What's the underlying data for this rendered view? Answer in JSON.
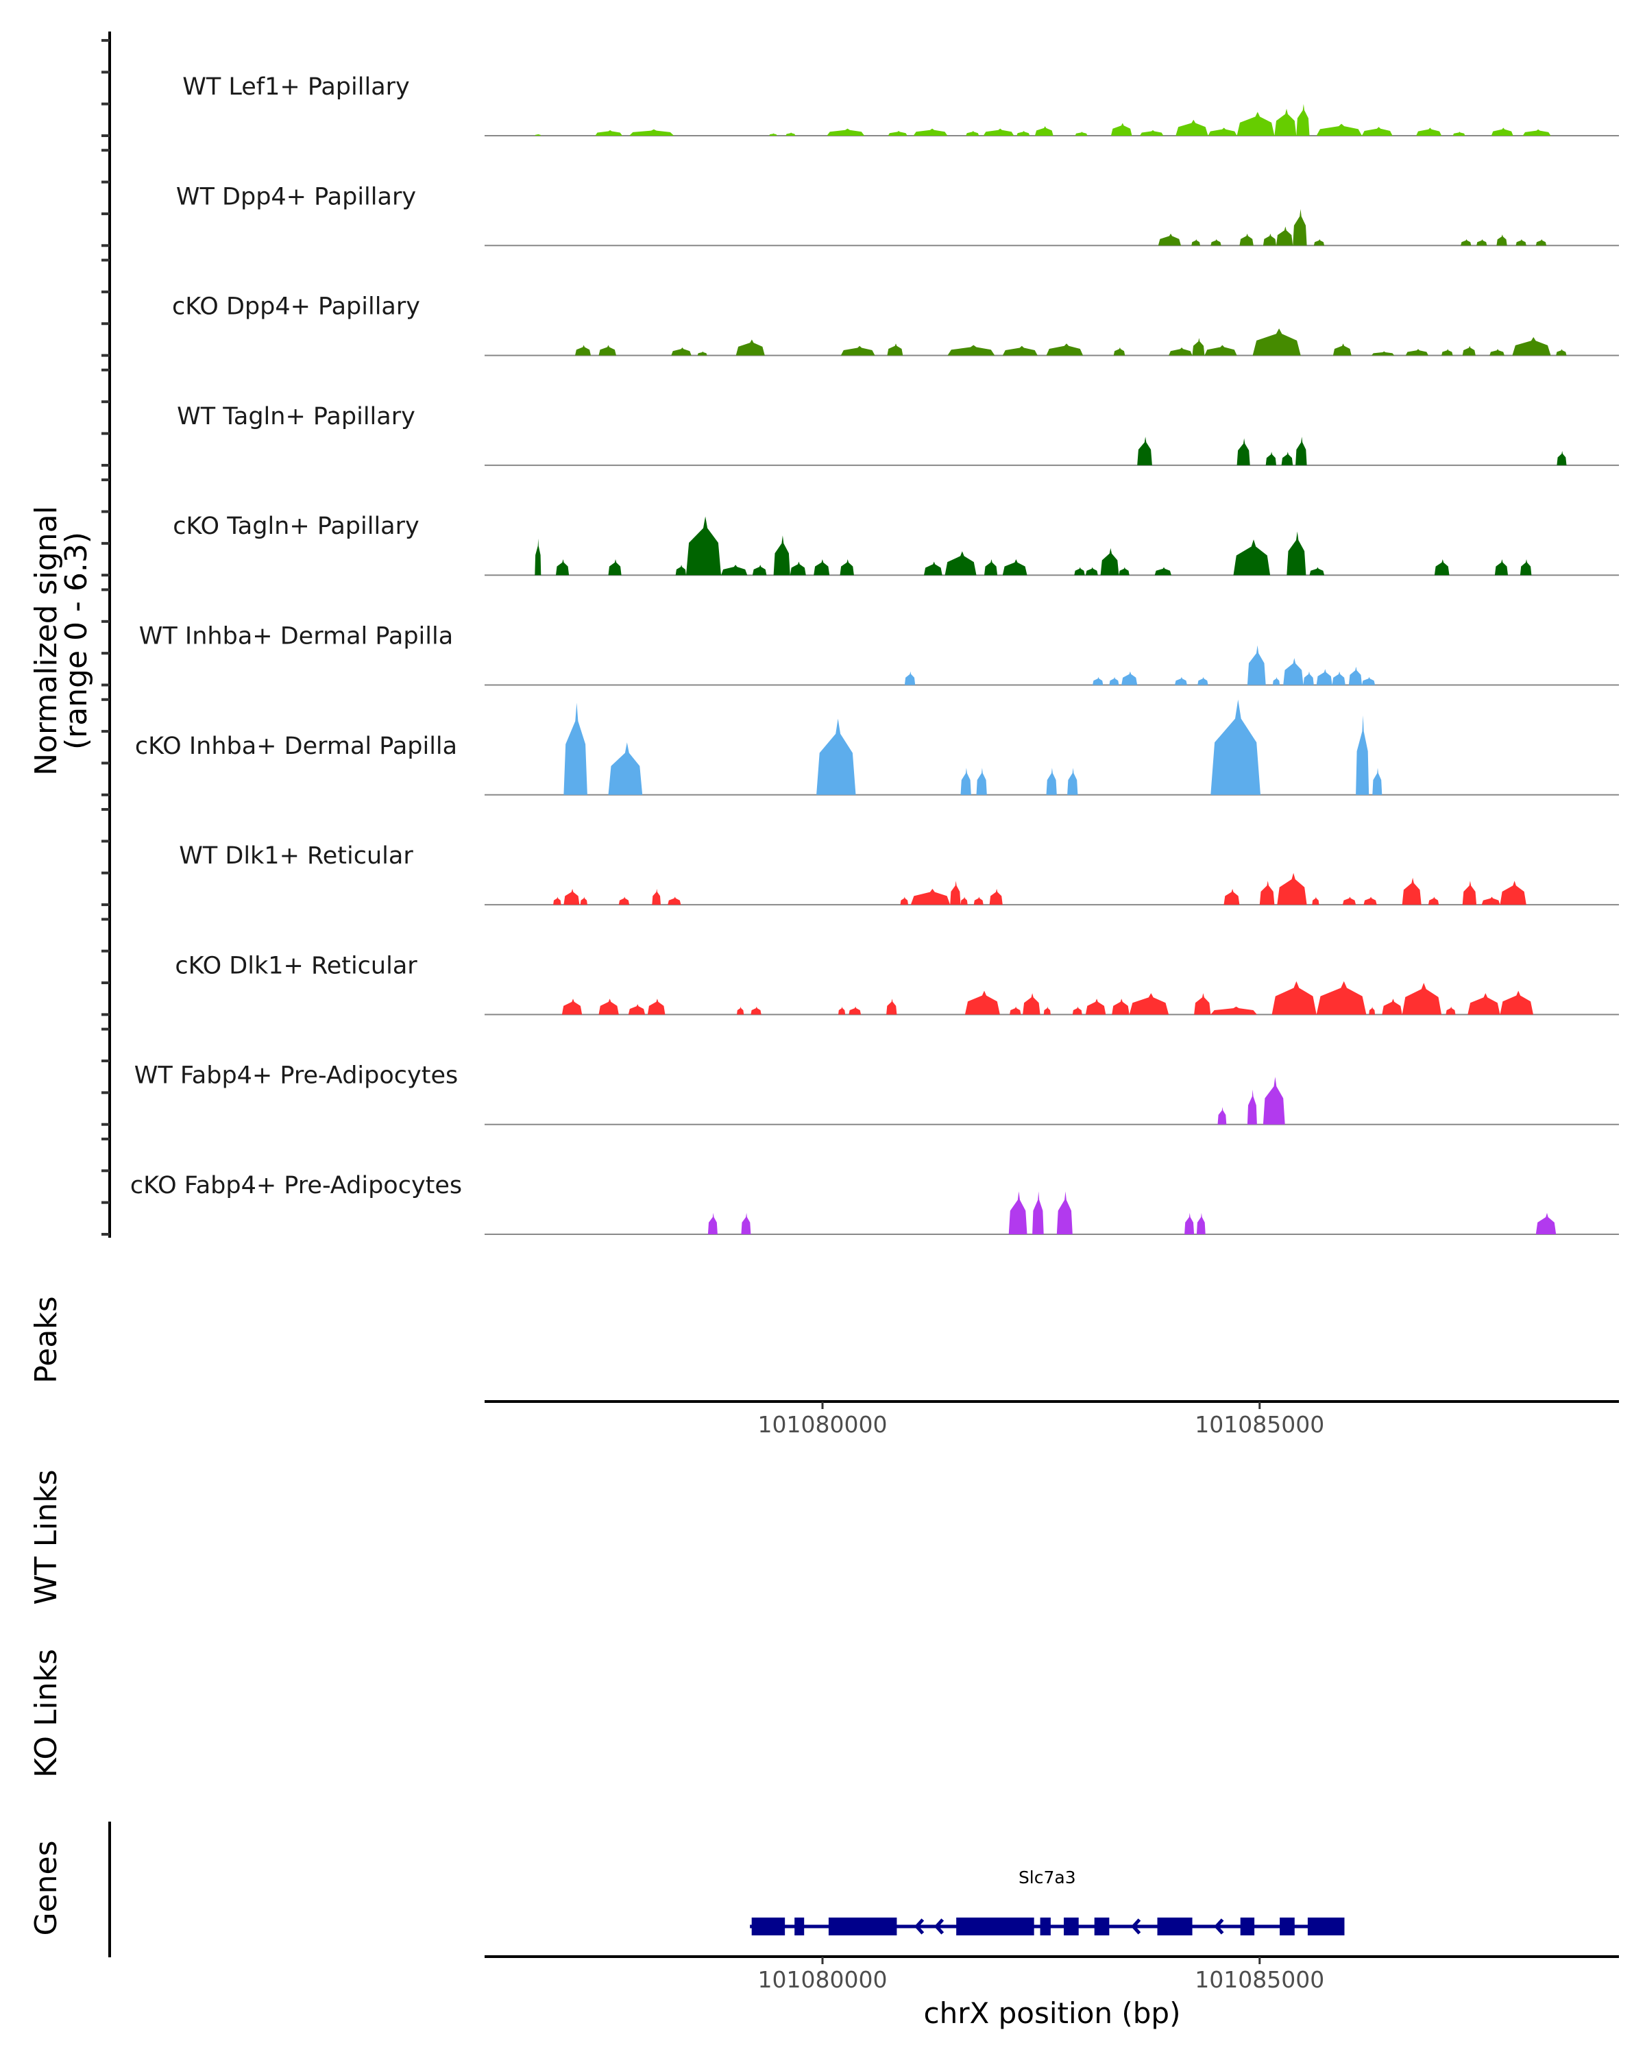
{
  "chart_data": {
    "type": "area",
    "title": "",
    "ylabel": "Normalized signal",
    "ylabel_sub": "(range 0 - 6.3)",
    "ylim": [
      0,
      6.3
    ],
    "xlabel": "chrX position (bp)",
    "xlim": [
      101076135,
      101089110
    ],
    "xticks": [
      101080000,
      101085000
    ],
    "xtick_labels": [
      "101080000",
      "101085000"
    ],
    "grid": false,
    "legend": "none",
    "tracks": [
      {
        "name": "WT Lef1+ Papillary",
        "color": "#66CD00",
        "peaks": [
          [
            101076710,
            101076780,
            0.1
          ],
          [
            101077400,
            101077710,
            0.35
          ],
          [
            101077790,
            101078300,
            0.4
          ],
          [
            101079390,
            101079480,
            0.15
          ],
          [
            101079580,
            101079690,
            0.2
          ],
          [
            101080050,
            101080480,
            0.45
          ],
          [
            101080750,
            101080970,
            0.3
          ],
          [
            101081040,
            101081430,
            0.45
          ],
          [
            101081640,
            101081790,
            0.3
          ],
          [
            101081840,
            101082190,
            0.45
          ],
          [
            101082220,
            101082370,
            0.3
          ],
          [
            101082430,
            101082640,
            0.6
          ],
          [
            101082890,
            101083030,
            0.25
          ],
          [
            101083300,
            101083540,
            0.8
          ],
          [
            101083630,
            101083900,
            0.35
          ],
          [
            101084040,
            101084410,
            1.0
          ],
          [
            101084410,
            101084740,
            0.5
          ],
          [
            101084740,
            101085170,
            1.5
          ],
          [
            101085170,
            101085420,
            1.7
          ],
          [
            101085420,
            101085570,
            2.0
          ],
          [
            101085650,
            101086170,
            0.75
          ],
          [
            101086170,
            101086520,
            0.55
          ],
          [
            101086790,
            101087080,
            0.5
          ],
          [
            101087210,
            101087350,
            0.25
          ],
          [
            101087650,
            101087900,
            0.5
          ],
          [
            101088010,
            101088330,
            0.4
          ]
        ]
      },
      {
        "name": "WT Dpp4+ Papillary",
        "color": "#458B00",
        "peaks": [
          [
            101083840,
            101084100,
            0.75
          ],
          [
            101084220,
            101084320,
            0.4
          ],
          [
            101084440,
            101084560,
            0.4
          ],
          [
            101084770,
            101084930,
            0.75
          ],
          [
            101085040,
            101085190,
            0.75
          ],
          [
            101085190,
            101085380,
            1.2
          ],
          [
            101085380,
            101085540,
            2.3
          ],
          [
            101085620,
            101085740,
            0.4
          ],
          [
            101087300,
            101087420,
            0.4
          ],
          [
            101087480,
            101087600,
            0.4
          ],
          [
            101087710,
            101087830,
            0.7
          ],
          [
            101087930,
            101088050,
            0.4
          ],
          [
            101088160,
            101088280,
            0.4
          ]
        ]
      },
      {
        "name": "cKO Dpp4+ Papillary",
        "color": "#458B00",
        "peaks": [
          [
            101077170,
            101077350,
            0.65
          ],
          [
            101077440,
            101077640,
            0.65
          ],
          [
            101078270,
            101078500,
            0.5
          ],
          [
            101078570,
            101078680,
            0.25
          ],
          [
            101079010,
            101079340,
            1.0
          ],
          [
            101080210,
            101080600,
            0.6
          ],
          [
            101080740,
            101080920,
            0.75
          ],
          [
            101081430,
            101081970,
            0.65
          ],
          [
            101082060,
            101082460,
            0.6
          ],
          [
            101082560,
            101082980,
            0.75
          ],
          [
            101083330,
            101083460,
            0.5
          ],
          [
            101083960,
            101084230,
            0.5
          ],
          [
            101084230,
            101084370,
            1.1
          ],
          [
            101084370,
            101084740,
            0.65
          ],
          [
            101084920,
            101085470,
            1.7
          ],
          [
            101085840,
            101086050,
            0.75
          ],
          [
            101086280,
            101086540,
            0.25
          ],
          [
            101086670,
            101086930,
            0.4
          ],
          [
            101087080,
            101087210,
            0.4
          ],
          [
            101087320,
            101087470,
            0.6
          ],
          [
            101087630,
            101087800,
            0.4
          ],
          [
            101087890,
            101088330,
            1.15
          ],
          [
            101088390,
            101088510,
            0.4
          ]
        ]
      },
      {
        "name": "WT Tagln+ Papillary",
        "color": "#006400",
        "peaks": [
          [
            101083600,
            101083770,
            1.8
          ],
          [
            101084740,
            101084890,
            1.7
          ],
          [
            101085070,
            101085190,
            0.85
          ],
          [
            101085250,
            101085380,
            0.85
          ],
          [
            101085410,
            101085540,
            1.8
          ],
          [
            101088400,
            101088510,
            0.9
          ]
        ]
      },
      {
        "name": "cKO Tagln+ Papillary",
        "color": "#006400",
        "peaks": [
          [
            101076710,
            101076780,
            2.3
          ],
          [
            101076950,
            101077100,
            1.0
          ],
          [
            101077550,
            101077700,
            1.0
          ],
          [
            101078320,
            101078440,
            0.65
          ],
          [
            101078440,
            101078840,
            3.7
          ],
          [
            101078840,
            101079140,
            0.65
          ],
          [
            101079200,
            101079360,
            0.65
          ],
          [
            101079440,
            101079630,
            2.5
          ],
          [
            101079630,
            101079810,
            0.85
          ],
          [
            101079900,
            101080080,
            1.0
          ],
          [
            101080200,
            101080360,
            1.0
          ],
          [
            101081160,
            101081370,
            0.85
          ],
          [
            101081400,
            101081760,
            1.5
          ],
          [
            101081850,
            101082000,
            1.0
          ],
          [
            101082060,
            101082340,
            1.0
          ],
          [
            101082880,
            101083000,
            0.5
          ],
          [
            101083010,
            101083150,
            0.5
          ],
          [
            101083180,
            101083390,
            1.7
          ],
          [
            101083390,
            101083510,
            0.5
          ],
          [
            101083800,
            101083990,
            0.5
          ],
          [
            101084700,
            101085120,
            2.25
          ],
          [
            101085310,
            101085530,
            2.75
          ],
          [
            101085570,
            101085740,
            0.5
          ],
          [
            101087000,
            101087170,
            1.0
          ],
          [
            101087690,
            101087840,
            1.0
          ],
          [
            101087980,
            101088110,
            1.0
          ]
        ]
      },
      {
        "name": "WT Inhba+ Dermal Papilla",
        "color": "#5DADEC",
        "peaks": [
          [
            101080940,
            101081060,
            0.85
          ],
          [
            101083090,
            101083210,
            0.5
          ],
          [
            101083280,
            101083390,
            0.5
          ],
          [
            101083420,
            101083600,
            0.85
          ],
          [
            101084030,
            101084170,
            0.5
          ],
          [
            101084290,
            101084410,
            0.5
          ],
          [
            101084860,
            101085070,
            2.5
          ],
          [
            101085150,
            101085230,
            0.5
          ],
          [
            101085270,
            101085500,
            1.7
          ],
          [
            101085500,
            101085620,
            0.85
          ],
          [
            101085650,
            101085830,
            1.0
          ],
          [
            101085830,
            101085980,
            0.85
          ],
          [
            101086020,
            101086170,
            1.15
          ],
          [
            101086170,
            101086320,
            0.5
          ]
        ]
      },
      {
        "name": "cKO Inhba+ Dermal Papilla",
        "color": "#5DADEC",
        "peaks": [
          [
            101077040,
            101077310,
            5.8
          ],
          [
            101077550,
            101077940,
            3.3
          ],
          [
            101079930,
            101080380,
            4.8
          ],
          [
            101081580,
            101081700,
            1.7
          ],
          [
            101081760,
            101081880,
            1.7
          ],
          [
            101082560,
            101082680,
            1.7
          ],
          [
            101082800,
            101082920,
            1.7
          ],
          [
            101084440,
            101085010,
            6.0
          ],
          [
            101086100,
            101086250,
            5.0
          ],
          [
            101086290,
            101086400,
            1.7
          ]
        ]
      },
      {
        "name": "WT Dlk1+ Reticular",
        "color": "#FF3030",
        "peaks": [
          [
            101076920,
            101077010,
            0.5
          ],
          [
            101077040,
            101077220,
            1.0
          ],
          [
            101077230,
            101077310,
            0.5
          ],
          [
            101077670,
            101077790,
            0.5
          ],
          [
            101078050,
            101078150,
            1.0
          ],
          [
            101078230,
            101078380,
            0.5
          ],
          [
            101080890,
            101080980,
            0.5
          ],
          [
            101081010,
            101081460,
            1.0
          ],
          [
            101081460,
            101081580,
            1.5
          ],
          [
            101081580,
            101081660,
            0.5
          ],
          [
            101081730,
            101081840,
            0.5
          ],
          [
            101081910,
            101082060,
            1.0
          ],
          [
            101084590,
            101084770,
            1.0
          ],
          [
            101085000,
            101085170,
            1.5
          ],
          [
            101085200,
            101085540,
            2.0
          ],
          [
            101085600,
            101085680,
            0.5
          ],
          [
            101085950,
            101086100,
            0.5
          ],
          [
            101086190,
            101086340,
            0.5
          ],
          [
            101086630,
            101086850,
            1.7
          ],
          [
            101086930,
            101087050,
            0.5
          ],
          [
            101087320,
            101087480,
            1.5
          ],
          [
            101087540,
            101087750,
            0.5
          ],
          [
            101087750,
            101088050,
            1.5
          ]
        ]
      },
      {
        "name": "cKO Dlk1+ Reticular",
        "color": "#FF3030",
        "peaks": [
          [
            101077020,
            101077250,
            1.0
          ],
          [
            101077440,
            101077670,
            1.0
          ],
          [
            101077780,
            101077970,
            0.65
          ],
          [
            101078000,
            101078200,
            1.0
          ],
          [
            101079020,
            101079100,
            0.5
          ],
          [
            101079180,
            101079300,
            0.5
          ],
          [
            101080180,
            101080260,
            0.5
          ],
          [
            101080300,
            101080440,
            0.5
          ],
          [
            101080730,
            101080850,
            1.0
          ],
          [
            101081630,
            101082030,
            1.5
          ],
          [
            101082140,
            101082270,
            0.5
          ],
          [
            101082290,
            101082490,
            1.35
          ],
          [
            101082530,
            101082610,
            0.5
          ],
          [
            101082860,
            101082970,
            0.5
          ],
          [
            101083010,
            101083240,
            1.0
          ],
          [
            101083310,
            101083510,
            1.0
          ],
          [
            101083510,
            101083960,
            1.35
          ],
          [
            101084250,
            101084440,
            1.35
          ],
          [
            101084440,
            101084970,
            0.5
          ],
          [
            101085140,
            101085650,
            2.1
          ],
          [
            101085650,
            101086220,
            2.1
          ],
          [
            101086250,
            101086320,
            0.5
          ],
          [
            101086400,
            101086630,
            1.0
          ],
          [
            101086630,
            101087080,
            2.0
          ],
          [
            101087130,
            101087240,
            0.5
          ],
          [
            101087380,
            101087750,
            1.35
          ],
          [
            101087750,
            101088130,
            1.5
          ]
        ]
      },
      {
        "name": "WT Fabp4+ Pre-Adipocytes",
        "color": "#B23AEE",
        "peaks": [
          [
            101084520,
            101084620,
            1.1
          ],
          [
            101084860,
            101084970,
            2.2
          ],
          [
            101085040,
            101085290,
            3.0
          ]
        ]
      },
      {
        "name": "cKO Fabp4+ Pre-Adipocytes",
        "color": "#B23AEE",
        "peaks": [
          [
            101078690,
            101078800,
            1.35
          ],
          [
            101079070,
            101079180,
            1.35
          ],
          [
            101082130,
            101082340,
            2.7
          ],
          [
            101082400,
            101082530,
            2.7
          ],
          [
            101082680,
            101082860,
            2.7
          ],
          [
            101084140,
            101084250,
            1.35
          ],
          [
            101084280,
            101084380,
            1.35
          ],
          [
            101088160,
            101088390,
            1.35
          ]
        ]
      }
    ],
    "panels": [
      {
        "name": "Peaks",
        "features": []
      },
      {
        "name": "WT Links",
        "features": []
      },
      {
        "name": "KO Links",
        "features": []
      },
      {
        "name": "Genes",
        "features": [
          {
            "gene": "Slc7a3",
            "strand": "-",
            "color": "#00008B",
            "start": 101079170,
            "end": 101085970,
            "exons": [
              [
                101079190,
                101079570
              ],
              [
                101079680,
                101079790
              ],
              [
                101080070,
                101080850
              ],
              [
                101081530,
                101082420
              ],
              [
                101082490,
                101082610
              ],
              [
                101082760,
                101082930
              ],
              [
                101083110,
                101083280
              ],
              [
                101083830,
                101084230
              ],
              [
                101084780,
                101084940
              ],
              [
                101085230,
                101085400
              ],
              [
                101085550,
                101085970
              ]
            ]
          }
        ]
      }
    ]
  },
  "side_titles": {
    "signal_line1": "Normalized signal",
    "signal_line2": "(range 0 - 6.3)",
    "peaks": "Peaks",
    "wt_links": "WT Links",
    "ko_links": "KO Links",
    "genes": "Genes"
  },
  "axis": {
    "tick_labels": [
      "101080000",
      "101085000"
    ],
    "xlabel": "chrX position (bp)"
  },
  "gene": {
    "label": "Slc7a3"
  }
}
